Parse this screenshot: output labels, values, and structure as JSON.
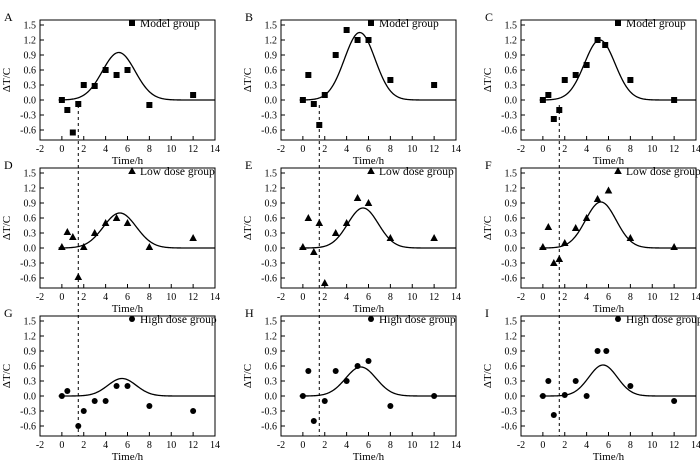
{
  "figure": {
    "xlabel": "Time/h",
    "ylabel": "ΔT/C",
    "xticks": [
      "-2",
      "0",
      "2",
      "4",
      "6",
      "8",
      "10",
      "12",
      "14"
    ],
    "yticks": [
      "-0.6",
      "-0.3",
      "0.0",
      "0.3",
      "0.6",
      "0.9",
      "1.2",
      "1.5"
    ],
    "line_color": "#000000"
  },
  "chart_data": [
    {
      "type": "scatter",
      "panel": "A",
      "legend": "Model group",
      "marker": "square",
      "xlim": [
        -2,
        14
      ],
      "ylim": [
        -0.8,
        1.6
      ],
      "points": {
        "x": [
          0,
          0.5,
          1,
          1.5,
          2,
          3,
          4,
          5,
          6,
          8,
          12
        ],
        "y": [
          0,
          -0.2,
          -0.65,
          -0.08,
          0.3,
          0.28,
          0.6,
          0.5,
          0.6,
          -0.1,
          0.1
        ]
      },
      "curve": {
        "base": 0,
        "peak_x": 5.2,
        "peak_y": 0.95,
        "width": 1.5
      }
    },
    {
      "type": "scatter",
      "panel": "B",
      "legend": "Model group",
      "marker": "square",
      "xlim": [
        -2,
        14
      ],
      "ylim": [
        -0.8,
        1.6
      ],
      "points": {
        "x": [
          0,
          0.5,
          1,
          1.5,
          2,
          3,
          4,
          5,
          6,
          8,
          12
        ],
        "y": [
          0,
          0.5,
          -0.08,
          -0.5,
          0.1,
          0.9,
          1.4,
          1.2,
          1.2,
          0.4,
          0.3
        ]
      },
      "curve": {
        "base": 0,
        "peak_x": 5.2,
        "peak_y": 1.35,
        "width": 1.4
      }
    },
    {
      "type": "scatter",
      "panel": "C",
      "legend": "Model group",
      "marker": "square",
      "xlim": [
        -2,
        14
      ],
      "ylim": [
        -0.8,
        1.6
      ],
      "points": {
        "x": [
          0,
          0.5,
          1,
          1.5,
          2,
          3,
          4,
          5,
          5.7,
          8,
          12
        ],
        "y": [
          0,
          0.1,
          -0.38,
          -0.2,
          0.4,
          0.5,
          0.7,
          1.2,
          1.1,
          0.4,
          0
        ]
      },
      "curve": {
        "base": 0,
        "peak_x": 5.2,
        "peak_y": 1.2,
        "width": 1.4
      }
    },
    {
      "type": "scatter",
      "panel": "D",
      "legend": "Low dose group",
      "marker": "triangle",
      "xlim": [
        -2,
        14
      ],
      "ylim": [
        -0.8,
        1.6
      ],
      "points": {
        "x": [
          0,
          0.5,
          1,
          1.5,
          2,
          3,
          4,
          5,
          6,
          8,
          12
        ],
        "y": [
          0.02,
          0.32,
          0.22,
          -0.58,
          0.02,
          0.3,
          0.5,
          0.6,
          0.5,
          0.02,
          0.2
        ]
      },
      "curve": {
        "base": 0,
        "peak_x": 5.3,
        "peak_y": 0.7,
        "width": 1.5
      }
    },
    {
      "type": "scatter",
      "panel": "E",
      "legend": "Low dose group",
      "marker": "triangle",
      "xlim": [
        -2,
        14
      ],
      "ylim": [
        -0.8,
        1.6
      ],
      "points": {
        "x": [
          0,
          0.5,
          1,
          1.5,
          2,
          3,
          4,
          5,
          6,
          8,
          12
        ],
        "y": [
          0.02,
          0.6,
          -0.08,
          0.5,
          -0.7,
          0.3,
          0.5,
          1.0,
          0.9,
          0.2,
          0.2
        ]
      },
      "curve": {
        "base": 0,
        "peak_x": 5.5,
        "peak_y": 0.8,
        "width": 1.4
      }
    },
    {
      "type": "scatter",
      "panel": "F",
      "legend": "Low dose group",
      "marker": "triangle",
      "xlim": [
        -2,
        14
      ],
      "ylim": [
        -0.8,
        1.6
      ],
      "points": {
        "x": [
          0,
          0.5,
          1,
          1.5,
          2,
          3,
          4,
          5,
          6,
          8,
          12
        ],
        "y": [
          0.02,
          0.42,
          -0.3,
          -0.22,
          0.1,
          0.4,
          0.6,
          0.98,
          1.15,
          0.2,
          0.02
        ]
      },
      "curve": {
        "base": 0,
        "peak_x": 5.3,
        "peak_y": 0.92,
        "width": 1.4
      }
    },
    {
      "type": "scatter",
      "panel": "G",
      "legend": "High dose group",
      "marker": "circle",
      "xlim": [
        -2,
        14
      ],
      "ylim": [
        -0.8,
        1.6
      ],
      "points": {
        "x": [
          0,
          0.5,
          1.5,
          2,
          3,
          4,
          5,
          6,
          8,
          12
        ],
        "y": [
          0,
          0.1,
          -0.6,
          -0.3,
          -0.1,
          -0.1,
          0.2,
          0.2,
          -0.2,
          -0.3
        ]
      },
      "curve": {
        "base": 0,
        "peak_x": 5.5,
        "peak_y": 0.35,
        "width": 1.3
      }
    },
    {
      "type": "scatter",
      "panel": "H",
      "legend": "High dose group",
      "marker": "circle",
      "xlim": [
        -2,
        14
      ],
      "ylim": [
        -0.8,
        1.6
      ],
      "points": {
        "x": [
          0,
          0.5,
          1,
          2,
          3,
          4,
          5,
          6,
          8,
          12
        ],
        "y": [
          0,
          0.5,
          -0.5,
          -0.1,
          0.5,
          0.3,
          0.6,
          0.7,
          -0.2,
          0
        ]
      },
      "curve": {
        "base": 0,
        "peak_x": 5.3,
        "peak_y": 0.58,
        "width": 1.4
      }
    },
    {
      "type": "scatter",
      "panel": "I",
      "legend": "High dose group",
      "marker": "circle",
      "xlim": [
        -2,
        14
      ],
      "ylim": [
        -0.8,
        1.6
      ],
      "points": {
        "x": [
          0,
          0.5,
          1,
          2,
          3,
          4,
          5,
          5.8,
          8,
          12
        ],
        "y": [
          0,
          0.3,
          -0.38,
          0.02,
          0.3,
          0,
          0.9,
          0.9,
          0.2,
          -0.1
        ]
      },
      "curve": {
        "base": 0,
        "peak_x": 5.5,
        "peak_y": 0.62,
        "width": 1.3
      }
    }
  ]
}
